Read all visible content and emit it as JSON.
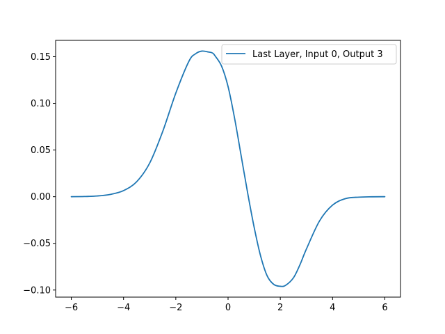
{
  "chart_data": {
    "type": "line",
    "title": "",
    "xlabel": "",
    "ylabel": "",
    "xlim": [
      -6.6,
      6.6
    ],
    "ylim": [
      -0.1076,
      0.1675
    ],
    "grid": false,
    "legend_position": "top-right",
    "x_ticks": [
      -6,
      -4,
      -2,
      0,
      2,
      4,
      6
    ],
    "x_tick_labels": [
      "−6",
      "−4",
      "−2",
      "0",
      "2",
      "4",
      "6"
    ],
    "y_ticks": [
      -0.1,
      -0.05,
      0.0,
      0.05,
      0.1,
      0.15
    ],
    "y_tick_labels": [
      "−0.10",
      "−0.05",
      "0.00",
      "0.05",
      "0.10",
      "0.15"
    ],
    "series": [
      {
        "name": "Last Layer, Input 0, Output 3",
        "color": "#1f77b4",
        "x": [
          -6.0,
          -5.5,
          -5.0,
          -4.5,
          -4.0,
          -3.5,
          -3.0,
          -2.5,
          -2.0,
          -1.5,
          -1.25,
          -1.0,
          -0.75,
          -0.6,
          -0.5,
          -0.25,
          0.0,
          0.25,
          0.5,
          0.75,
          1.0,
          1.25,
          1.5,
          1.75,
          2.0,
          2.2,
          2.5,
          2.75,
          3.0,
          3.5,
          4.0,
          4.5,
          5.0,
          5.5,
          6.0
        ],
        "y": [
          0.0,
          0.0002,
          0.0008,
          0.0025,
          0.0065,
          0.016,
          0.036,
          0.07,
          0.111,
          0.145,
          0.153,
          0.156,
          0.155,
          0.154,
          0.151,
          0.14,
          0.118,
          0.084,
          0.044,
          0.004,
          -0.033,
          -0.064,
          -0.085,
          -0.094,
          -0.096,
          -0.095,
          -0.087,
          -0.073,
          -0.056,
          -0.026,
          -0.009,
          -0.002,
          -0.0005,
          -0.0001,
          0.0
        ]
      }
    ]
  }
}
